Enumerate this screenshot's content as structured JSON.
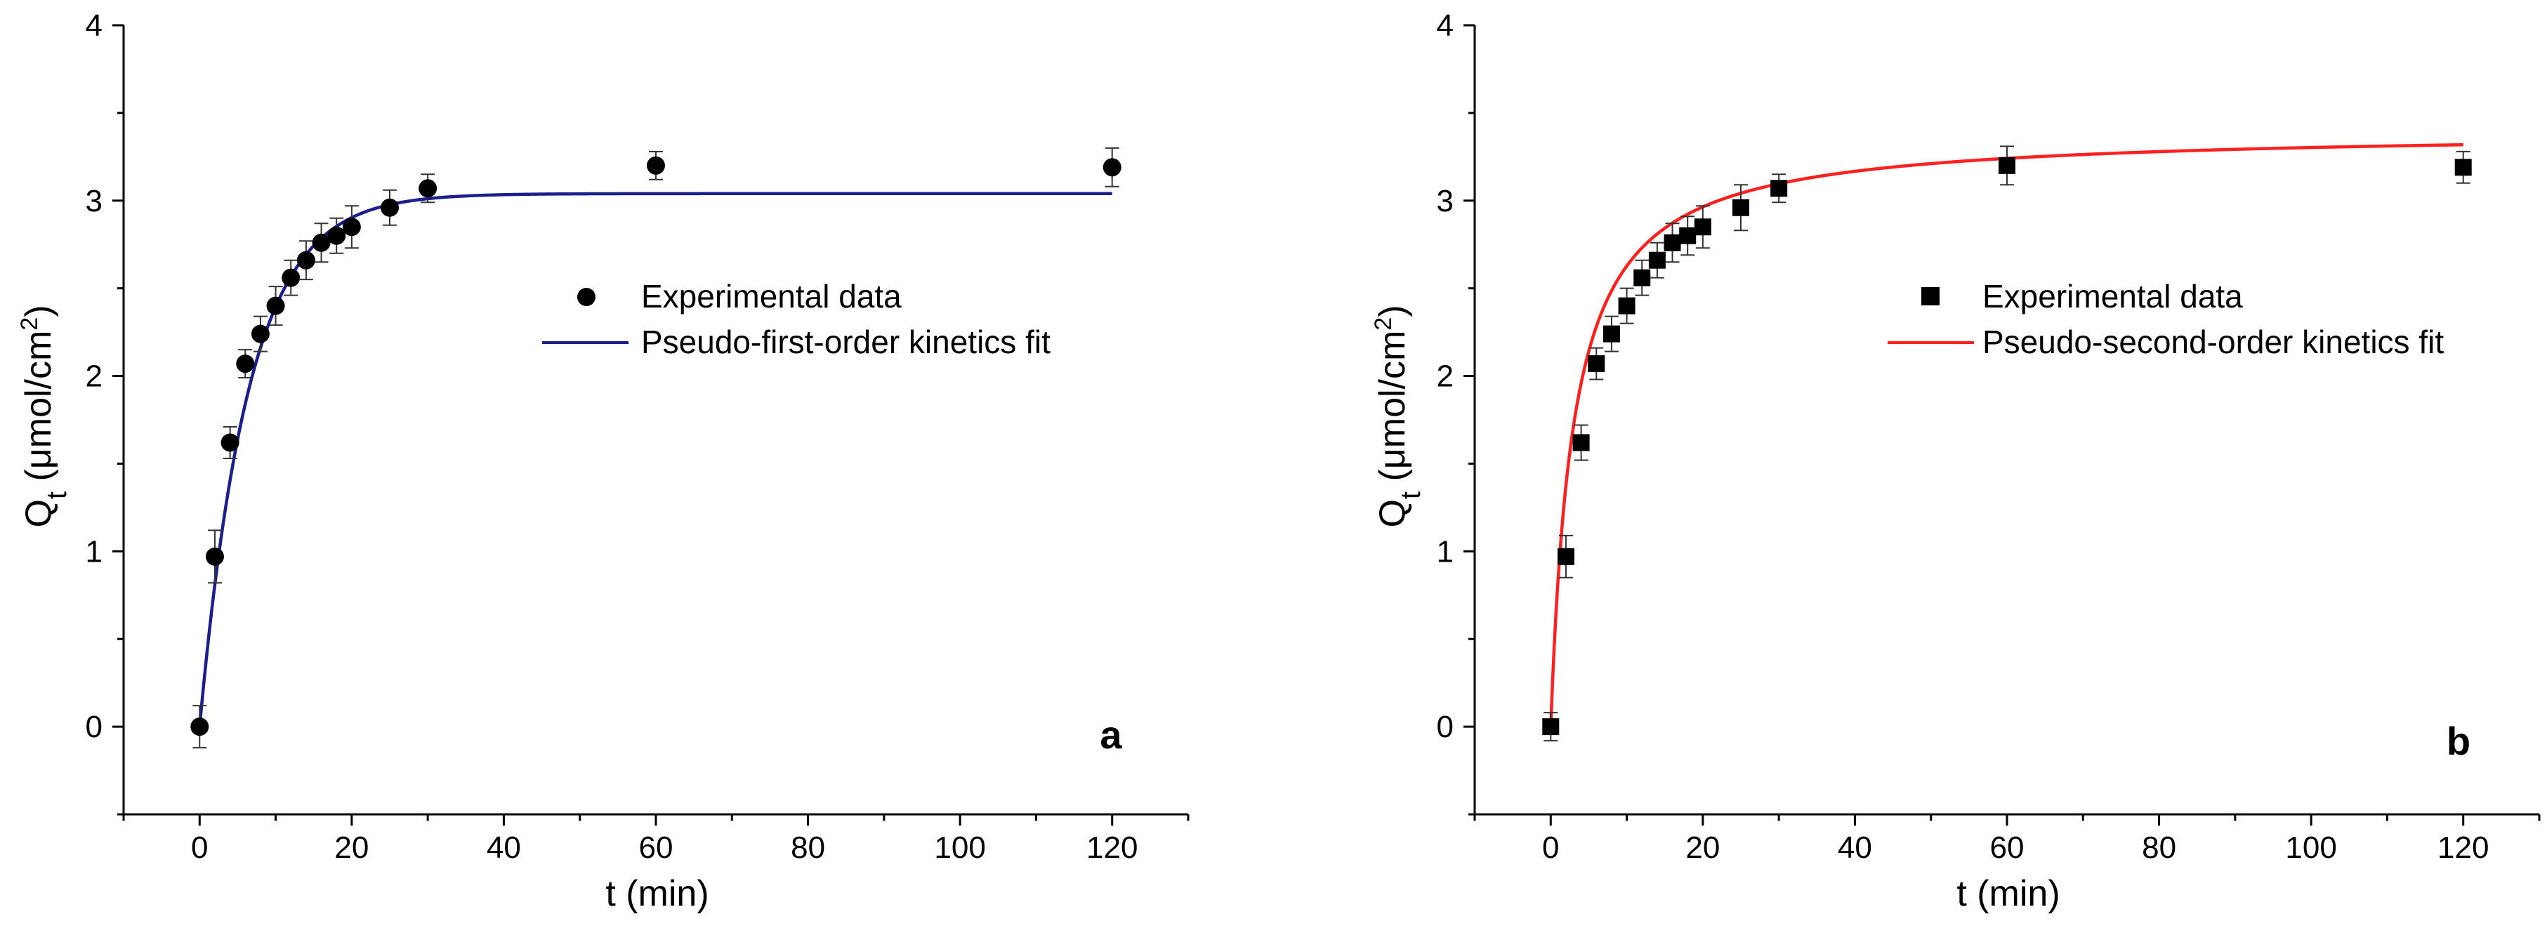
{
  "chart_data": [
    {
      "type": "scatter",
      "panel": "a",
      "xlabel": "t (min)",
      "ylabel": {
        "base": "Q",
        "sub": "t",
        "unit_open": " (μmol/cm",
        "sup": "2",
        "unit_close": ")"
      },
      "xlim": [
        -10,
        130
      ],
      "ylim": [
        -0.5,
        4
      ],
      "xticks": [
        0,
        20,
        40,
        60,
        80,
        100,
        120
      ],
      "yticks": [
        0,
        1,
        2,
        3,
        4
      ],
      "marker": "circle",
      "fit_color": "#1a1f8c",
      "legend": {
        "placement": "center-right",
        "entries": [
          "Experimental data",
          "Pseudo-first-order kinetics fit"
        ]
      },
      "series": [
        {
          "name": "Experimental data",
          "x": [
            0,
            2,
            4,
            6,
            8,
            10,
            12,
            14,
            16,
            18,
            20,
            25,
            30,
            60,
            120
          ],
          "y": [
            0,
            0.97,
            1.62,
            2.07,
            2.24,
            2.4,
            2.56,
            2.66,
            2.76,
            2.8,
            2.85,
            2.96,
            3.07,
            3.2,
            3.19
          ],
          "yerr": [
            0.12,
            0.15,
            0.09,
            0.08,
            0.1,
            0.11,
            0.1,
            0.11,
            0.11,
            0.1,
            0.12,
            0.1,
            0.08,
            0.08,
            0.11
          ]
        },
        {
          "name": "Pseudo-first-order kinetics fit",
          "model": "pseudo-first-order",
          "qe": 3.04,
          "k": 0.155,
          "x_range": [
            0,
            120
          ]
        }
      ]
    },
    {
      "type": "scatter",
      "panel": "b",
      "xlabel": "t (min)",
      "ylabel": {
        "base": "Q",
        "sub": "t",
        "unit_open": " (μmol/cm",
        "sup": "2",
        "unit_close": ")"
      },
      "xlim": [
        -10,
        130
      ],
      "ylim": [
        -0.5,
        4
      ],
      "xticks": [
        0,
        20,
        40,
        60,
        80,
        100,
        120
      ],
      "yticks": [
        0,
        1,
        2,
        3,
        4
      ],
      "marker": "square",
      "fit_color": "#ff2020",
      "legend": {
        "placement": "center-right",
        "entries": [
          "Experimental data",
          "Pseudo-second-order kinetics fit"
        ]
      },
      "series": [
        {
          "name": "Experimental data",
          "x": [
            0,
            2,
            4,
            6,
            8,
            10,
            12,
            14,
            16,
            18,
            20,
            25,
            30,
            60,
            120
          ],
          "y": [
            0,
            0.97,
            1.62,
            2.07,
            2.24,
            2.4,
            2.56,
            2.66,
            2.76,
            2.8,
            2.85,
            2.96,
            3.07,
            3.2,
            3.19
          ],
          "yerr": [
            0.08,
            0.12,
            0.1,
            0.09,
            0.1,
            0.1,
            0.1,
            0.1,
            0.11,
            0.11,
            0.12,
            0.13,
            0.08,
            0.11,
            0.09
          ]
        },
        {
          "name": "Pseudo-second-order kinetics fit",
          "model": "pseudo-second-order",
          "qe": 3.4,
          "k": 0.1,
          "x_range": [
            0,
            120
          ]
        }
      ]
    }
  ]
}
